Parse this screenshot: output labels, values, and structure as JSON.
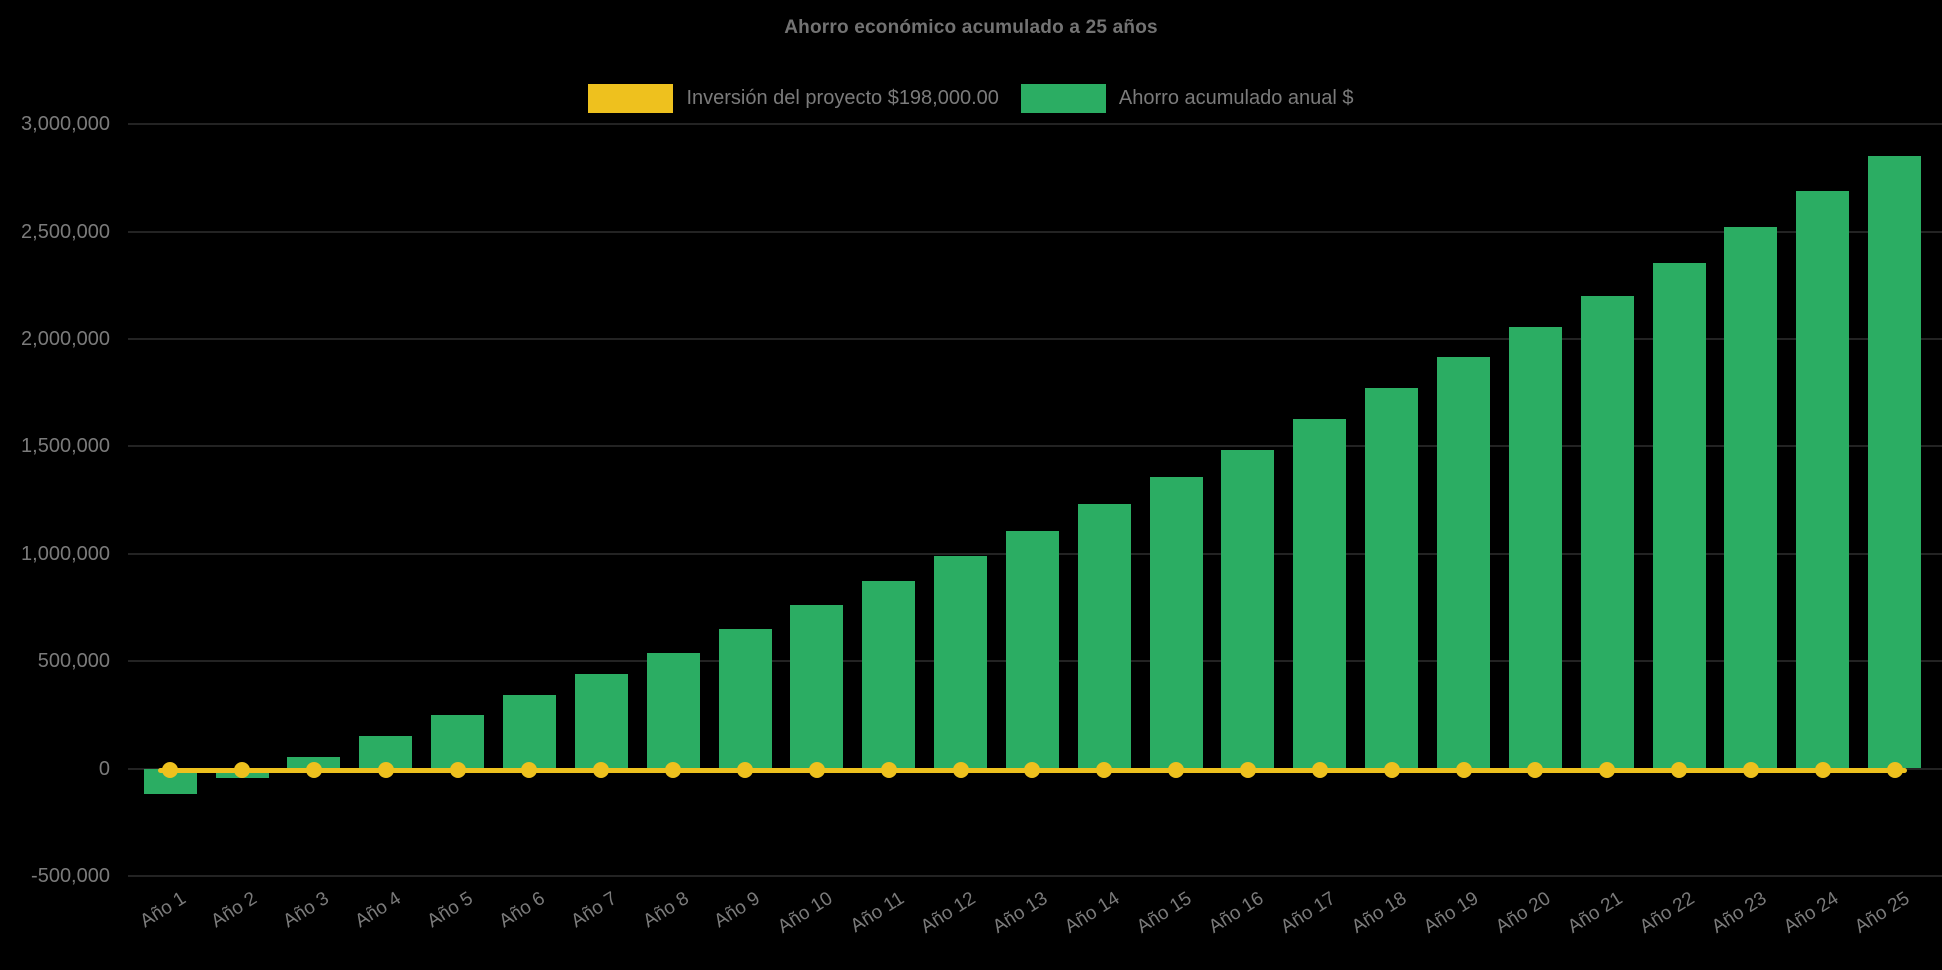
{
  "chart_data": {
    "type": "bar",
    "combo": "bar+line",
    "title": "Ahorro económico acumulado a 25 años",
    "legend_position": "top",
    "grid": "off (gridlines invisible on black background)",
    "background_color": "#000000",
    "categories": [
      "Año 1",
      "Año 2",
      "Año 3",
      "Año 4",
      "Año 5",
      "Año 6",
      "Año 7",
      "Año 8",
      "Año 9",
      "Año 10",
      "Año 11",
      "Año 12",
      "Año 13",
      "Año 14",
      "Año 15",
      "Año 16",
      "Año 17",
      "Año 18",
      "Año 19",
      "Año 20",
      "Año 21",
      "Año 22",
      "Año 23",
      "Año 24",
      "Año 25"
    ],
    "series": [
      {
        "name": "Inversión del proyecto $198,000.00",
        "type": "line",
        "color": "#EEC11E",
        "plotted_value": 0,
        "values": [
          0,
          0,
          0,
          0,
          0,
          0,
          0,
          0,
          0,
          0,
          0,
          0,
          0,
          0,
          0,
          0,
          0,
          0,
          0,
          0,
          0,
          0,
          0,
          0,
          0
        ]
      },
      {
        "name": "Ahorro acumulado anual $",
        "type": "bar",
        "color": "#2BAD63",
        "values": [
          -120000,
          -45000,
          55000,
          150000,
          250000,
          340000,
          440000,
          540000,
          650000,
          760000,
          875000,
          990000,
          1105000,
          1230000,
          1355000,
          1485000,
          1625000,
          1770000,
          1915000,
          2055000,
          2200000,
          2355000,
          2520000,
          2690000,
          2850000
        ]
      }
    ],
    "y_axis": {
      "min": -500000,
      "max": 3000000,
      "step": 500000,
      "tick_labels": [
        "3,000,000",
        "2,500,000",
        "2,000,000",
        "1,500,000",
        "1,000,000",
        "500,000",
        "0",
        "-500,000"
      ],
      "tick_values": [
        3000000,
        2500000,
        2000000,
        1500000,
        1000000,
        500000,
        0,
        -500000
      ]
    },
    "x_axis": {
      "label_rotation_deg": -32
    }
  },
  "colors": {
    "background": "#000000",
    "bar_green": "#2BAD63",
    "line_yellow": "#EEC11E",
    "text_gray": "#7b7b7b",
    "title_gray": "#737373"
  }
}
